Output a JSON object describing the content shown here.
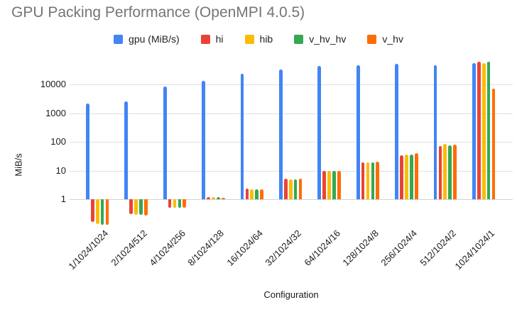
{
  "title": "GPU Packing Performance (OpenMPI 4.0.5)",
  "chart_data": {
    "type": "bar",
    "title": "GPU Packing Performance (OpenMPI 4.0.5)",
    "xlabel": "Configuration",
    "ylabel": "MiB/s",
    "y_scale": "log",
    "yticks": [
      1,
      10,
      100,
      1000,
      10000
    ],
    "ylim": [
      0.1,
      100000
    ],
    "grid": "horizontal",
    "legend_position": "top",
    "categories": [
      "1/1024/1024",
      "2/1024/512",
      "4/1024/256",
      "8/1024/128",
      "16/1024/64",
      "32/1024/32",
      "64/1024/16",
      "128/1024/8",
      "256/1024/4",
      "512/1024/2",
      "1024/1024/1"
    ],
    "series": [
      {
        "name": "gpu (MiB/s)",
        "color": "#4285F4",
        "values": [
          2200,
          2600,
          8500,
          13000,
          23000,
          34000,
          44000,
          46000,
          51000,
          46000,
          55000
        ]
      },
      {
        "name": "hi",
        "color": "#EA4335",
        "values": [
          0.16,
          0.3,
          0.5,
          1.2,
          2.4,
          5.2,
          10,
          19,
          35,
          71,
          62000
        ]
      },
      {
        "name": "hib",
        "color": "#FBBC04",
        "values": [
          0.14,
          0.28,
          0.5,
          1.2,
          2.2,
          4.9,
          9.5,
          19,
          37,
          83,
          55000
        ]
      },
      {
        "name": "v_hv_hv",
        "color": "#34A853",
        "values": [
          0.13,
          0.28,
          0.5,
          1.2,
          2.2,
          4.9,
          9.5,
          19,
          36,
          75,
          62000
        ]
      },
      {
        "name": "v_hv",
        "color": "#FF6D01",
        "values": [
          0.13,
          0.27,
          0.5,
          1.15,
          2.2,
          5.2,
          9.5,
          20,
          40,
          79,
          7000
        ]
      }
    ]
  }
}
